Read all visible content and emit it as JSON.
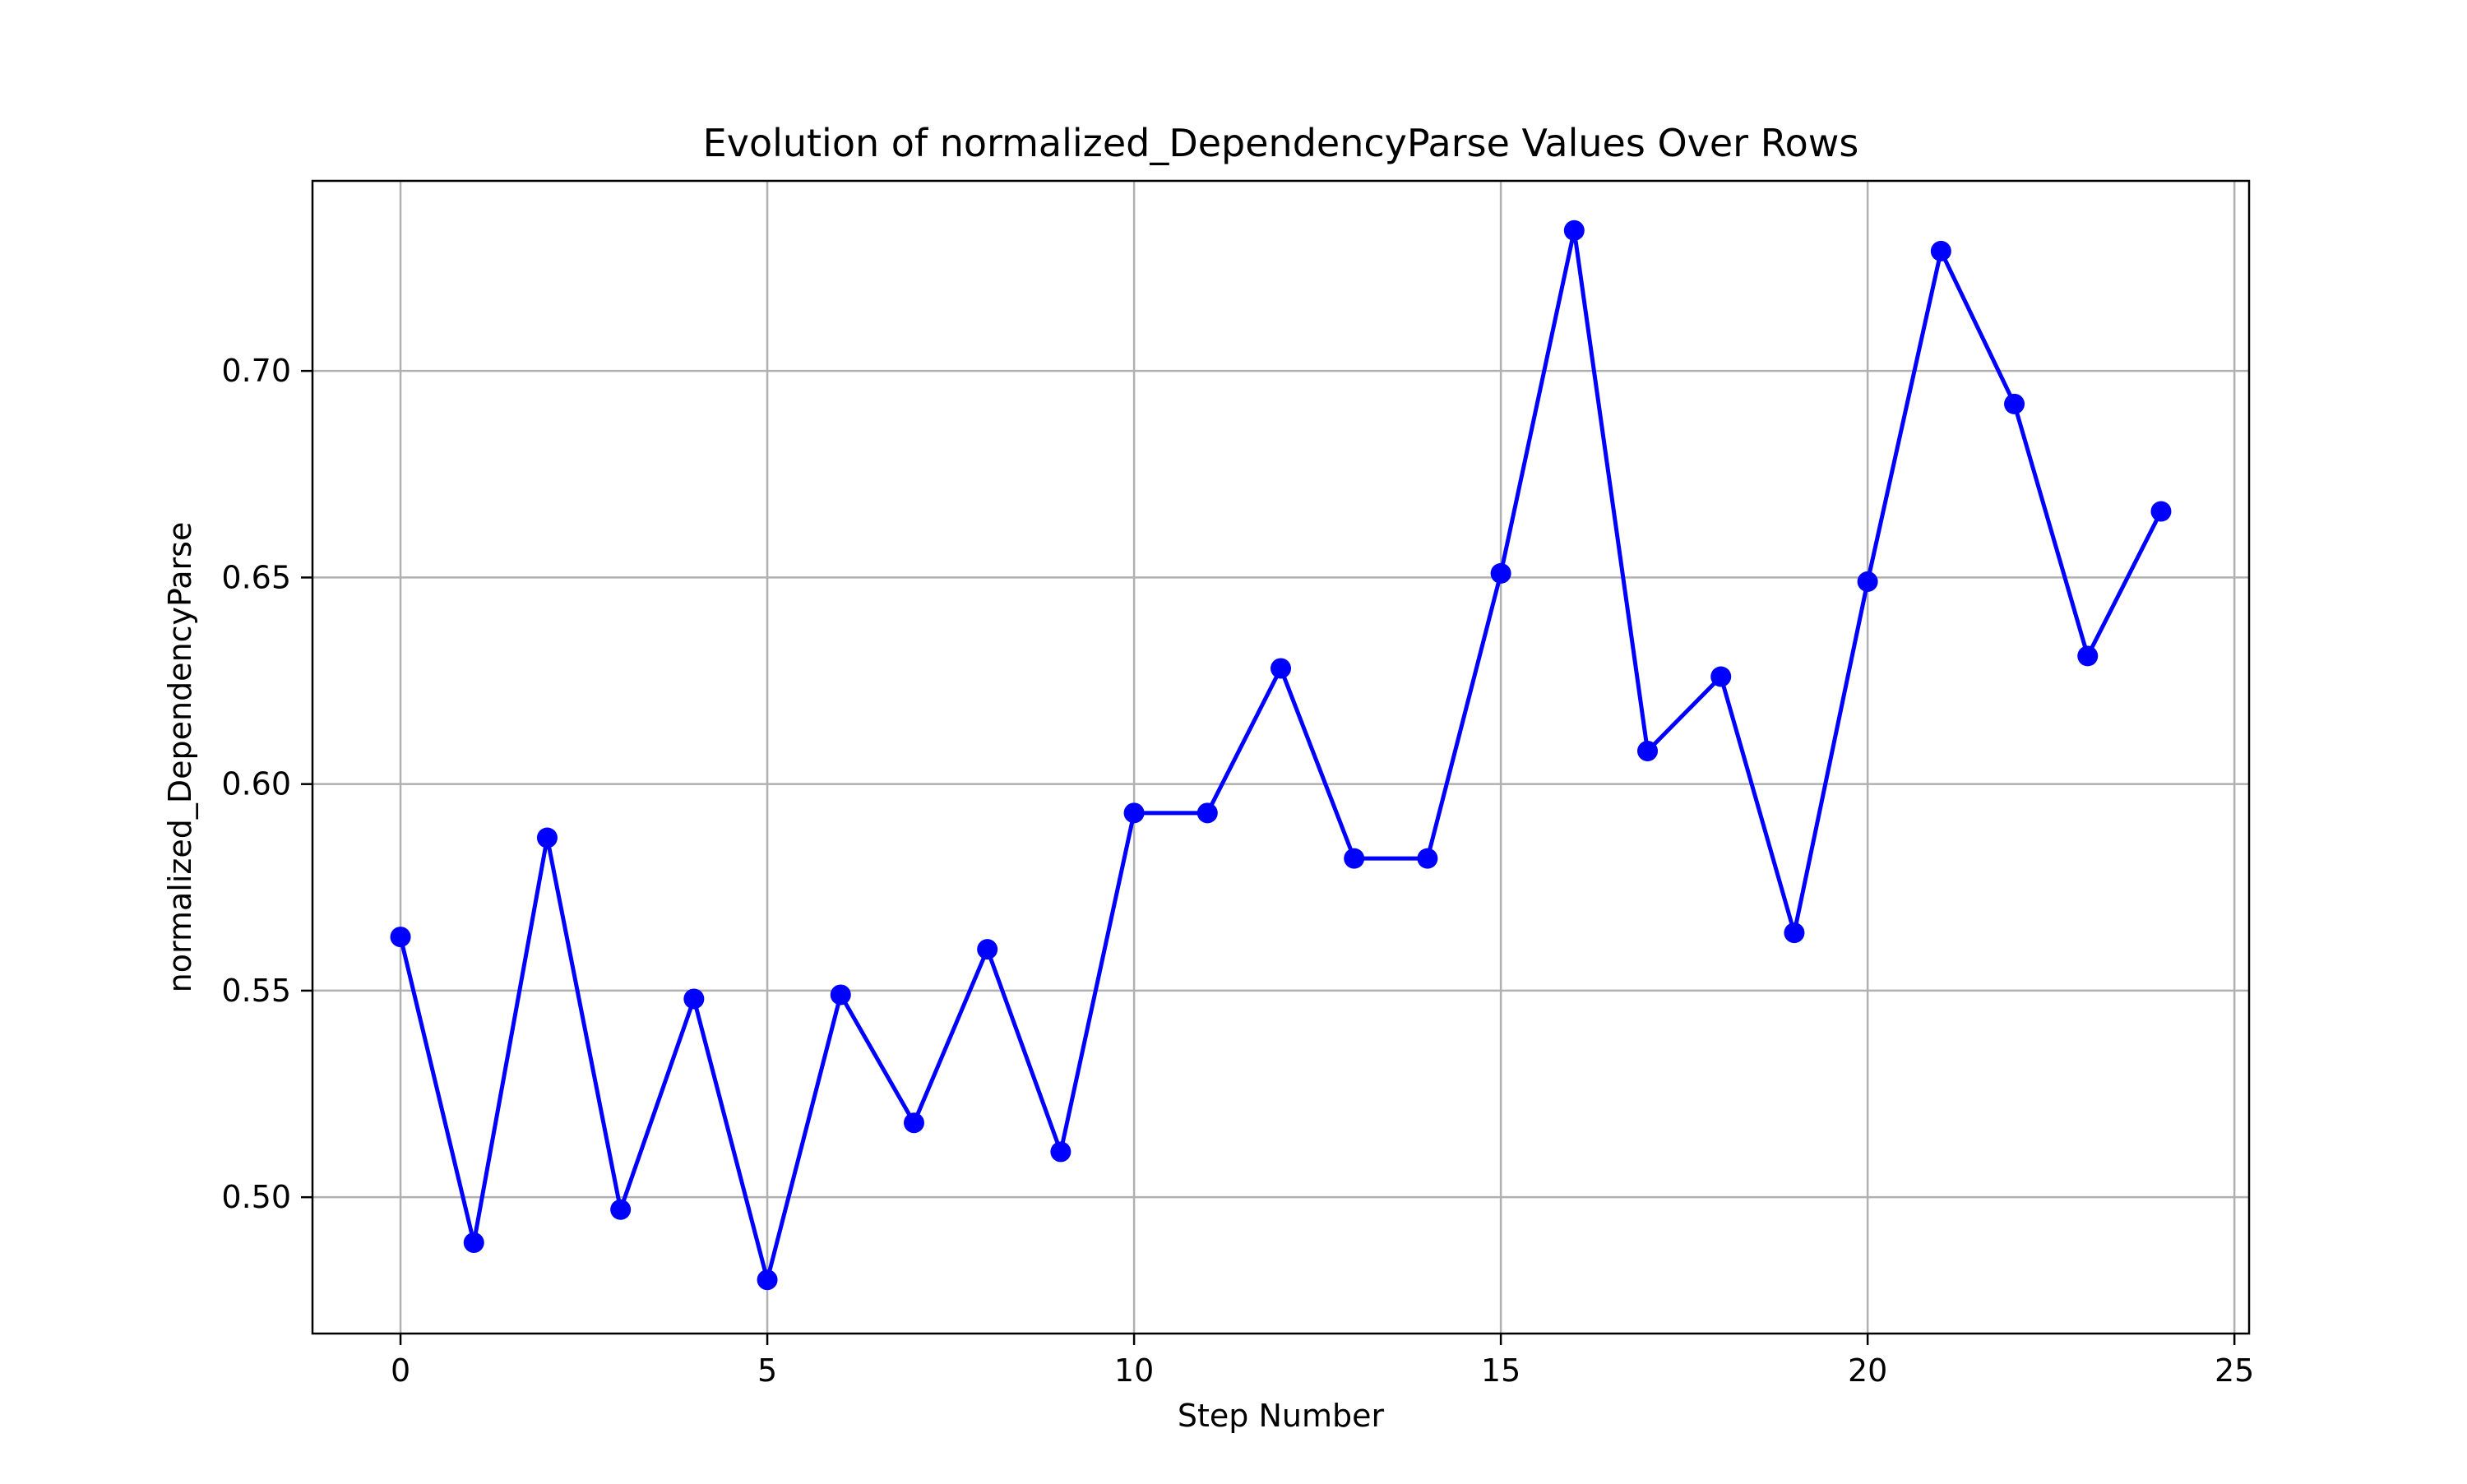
{
  "chart_data": {
    "type": "line",
    "title": "Evolution of normalized_DependencyParse Values Over Rows",
    "xlabel": "Step Number",
    "ylabel": "normalized_DependencyParse",
    "xlim": [
      -1.2,
      25.2
    ],
    "ylim": [
      0.467,
      0.746
    ],
    "x_ticks": [
      0,
      5,
      10,
      15,
      20,
      25
    ],
    "x_tick_labels": [
      "0",
      "5",
      "10",
      "15",
      "20",
      "25"
    ],
    "y_ticks": [
      0.5,
      0.55,
      0.6,
      0.65,
      0.7
    ],
    "y_tick_labels": [
      "0.50",
      "0.55",
      "0.60",
      "0.65",
      "0.70"
    ],
    "grid": true,
    "legend": false,
    "series": [
      {
        "color": "#0000ff",
        "marker": "circle",
        "x": [
          0,
          1,
          2,
          3,
          4,
          5,
          6,
          7,
          8,
          9,
          10,
          11,
          12,
          13,
          14,
          15,
          16,
          17,
          18,
          19,
          20,
          21,
          22,
          23,
          24
        ],
        "y": [
          0.563,
          0.489,
          0.587,
          0.497,
          0.548,
          0.48,
          0.549,
          0.518,
          0.56,
          0.511,
          0.593,
          0.593,
          0.628,
          0.582,
          0.582,
          0.651,
          0.734,
          0.608,
          0.626,
          0.564,
          0.649,
          0.729,
          0.692,
          0.631,
          0.666
        ]
      }
    ]
  }
}
